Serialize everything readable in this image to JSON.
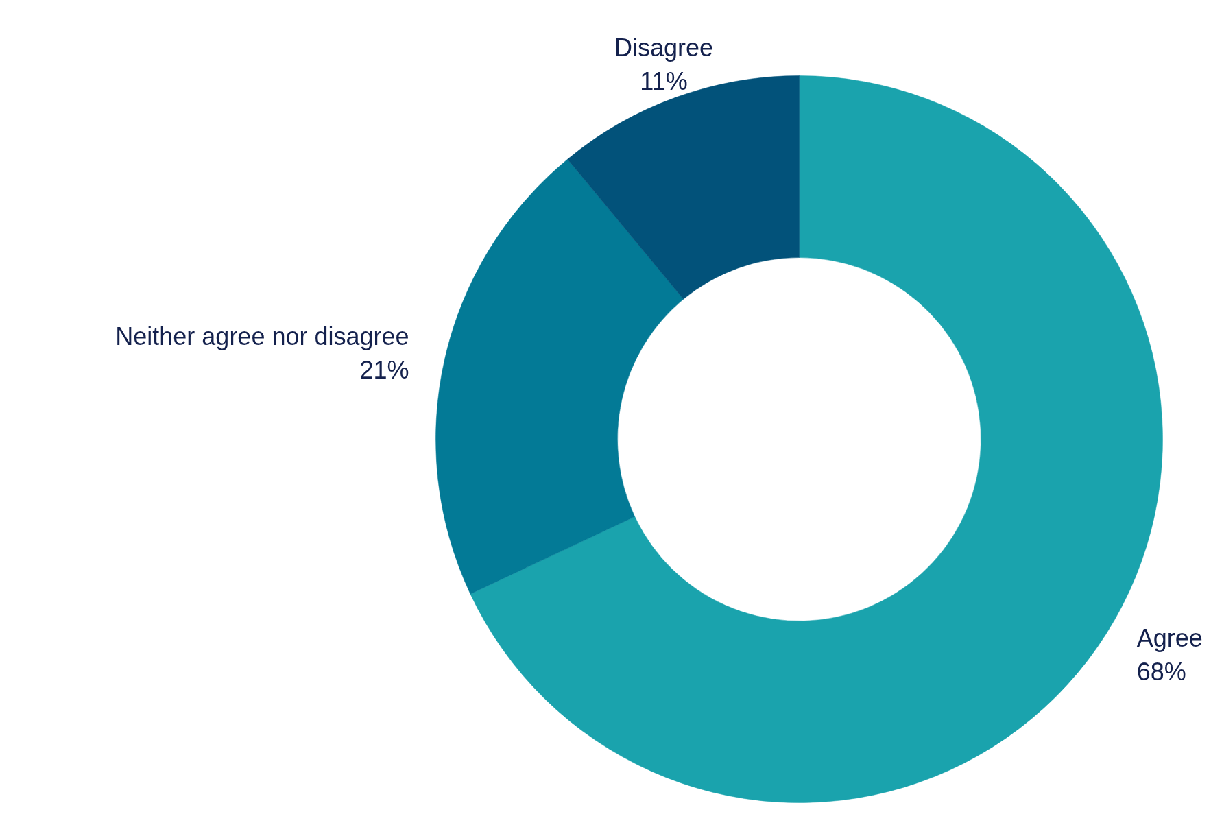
{
  "chart_data": {
    "type": "donut",
    "categories": [
      "Agree",
      "Neither agree nor disagree",
      "Disagree"
    ],
    "values": [
      68,
      21,
      11
    ],
    "colors": [
      "#1aa3ad",
      "#037a96",
      "#02527a"
    ],
    "value_labels": [
      "68%",
      "21%",
      "11%"
    ]
  }
}
